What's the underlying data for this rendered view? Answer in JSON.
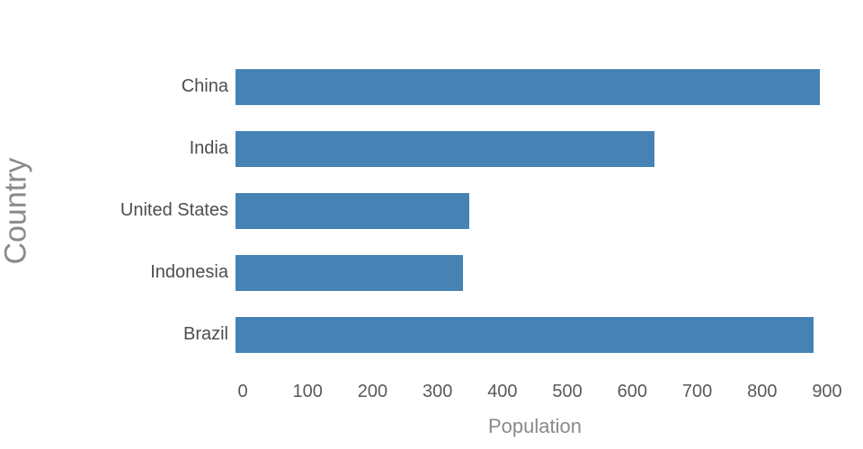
{
  "chart_data": {
    "type": "bar",
    "orientation": "horizontal",
    "title": "",
    "xlabel": "Population",
    "ylabel": "Country",
    "categories": [
      "China",
      "India",
      "United States",
      "Indonesia",
      "Brazil"
    ],
    "values": [
      900,
      645,
      360,
      350,
      890
    ],
    "xlim": [
      0,
      900
    ],
    "xticks": [
      0,
      100,
      200,
      300,
      400,
      500,
      600,
      700,
      800,
      900
    ],
    "bar_color": "#4682b4",
    "grid": false,
    "legend": null,
    "background": "#ffffff"
  }
}
